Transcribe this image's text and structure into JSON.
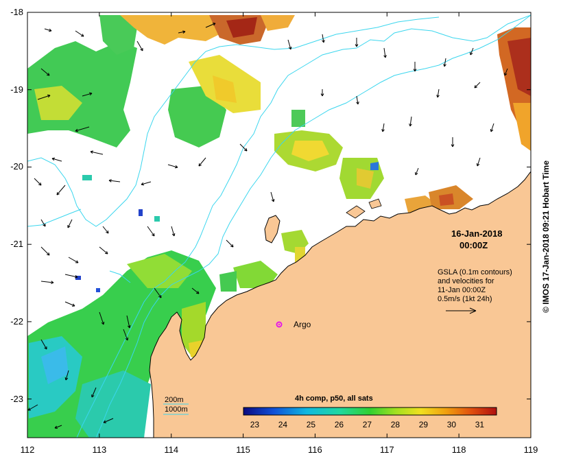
{
  "map": {
    "x_axis": {
      "ticks": [
        "112",
        "113",
        "114",
        "115",
        "116",
        "117",
        "118",
        "119"
      ],
      "range": [
        112,
        119
      ]
    },
    "y_axis": {
      "ticks": [
        "-18",
        "-19",
        "-20",
        "-21",
        "-22",
        "-23"
      ],
      "range": [
        -23.5,
        -18
      ]
    },
    "date_label": "16-Jan-2018",
    "time_label": "00:00Z",
    "gsla_lines": [
      "GSLA (0.1m contours)",
      "and velocities for",
      "11-Jan 00:00Z",
      "0.5m/s (1kt 24h)"
    ],
    "argo": {
      "label": "Argo",
      "lon": 115.5,
      "lat": -22.03
    },
    "contours": {
      "label_200": "200m",
      "label_1000": "1000m"
    },
    "colorbar": {
      "title": "4h comp, p50, all sats",
      "ticks": [
        "23",
        "24",
        "25",
        "26",
        "27",
        "28",
        "29",
        "30",
        "31"
      ],
      "min": 22.6,
      "max": 31.6
    },
    "credit": "© IMOS 17-Jan-2018 09:21 Hobart Time",
    "colors": {
      "land": "#f9c795",
      "contour": "#3ad6ee",
      "argo": "#e619e6",
      "cold": "#1a1a7a",
      "mid": "#1ac84a",
      "warm": "#f0d020",
      "hot": "#a01808"
    }
  }
}
